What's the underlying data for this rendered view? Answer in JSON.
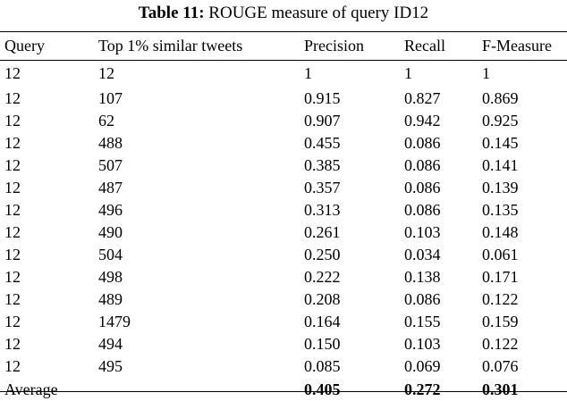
{
  "caption": {
    "label": "Table 11:",
    "text": "ROUGE measure of query ID12"
  },
  "table": {
    "headers": [
      "Query",
      "Top 1% similar tweets",
      "Precision",
      "Recall",
      "F-Measure"
    ],
    "rows": [
      [
        "12",
        "12",
        "1",
        "1",
        "1"
      ],
      [
        "12",
        "107",
        "0.915",
        "0.827",
        "0.869"
      ],
      [
        "12",
        "62",
        "0.907",
        "0.942",
        "0.925"
      ],
      [
        "12",
        "488",
        "0.455",
        "0.086",
        "0.145"
      ],
      [
        "12",
        "507",
        "0.385",
        "0.086",
        "0.141"
      ],
      [
        "12",
        "487",
        "0.357",
        "0.086",
        "0.139"
      ],
      [
        "12",
        "496",
        "0.313",
        "0.086",
        "0.135"
      ],
      [
        "12",
        "490",
        "0.261",
        "0.103",
        "0.148"
      ],
      [
        "12",
        "504",
        "0.250",
        "0.034",
        "0.061"
      ],
      [
        "12",
        "498",
        "0.222",
        "0.138",
        "0.171"
      ],
      [
        "12",
        "489",
        "0.208",
        "0.086",
        "0.122"
      ],
      [
        "12",
        "1479",
        "0.164",
        "0.155",
        "0.159"
      ],
      [
        "12",
        "494",
        "0.150",
        "0.103",
        "0.122"
      ],
      [
        "12",
        "495",
        "0.085",
        "0.069",
        "0.076"
      ]
    ],
    "average": {
      "label": "Average",
      "precision": "0.405",
      "recall": "0.272",
      "fmeasure": "0.301"
    }
  }
}
